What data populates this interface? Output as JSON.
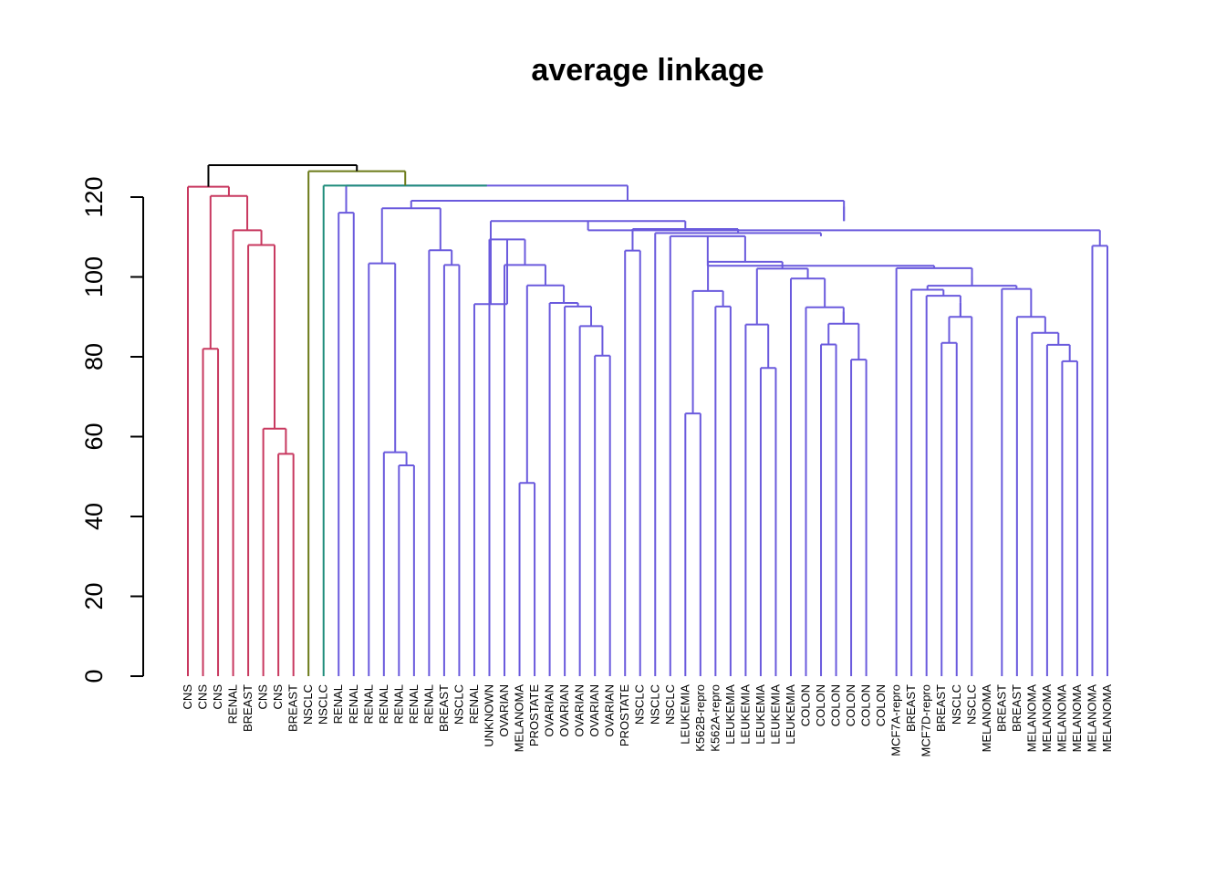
{
  "chart_data": {
    "type": "dendrogram",
    "title": "average linkage",
    "xlabel": "",
    "ylabel": "",
    "ylim": [
      0,
      130
    ],
    "yticks": [
      0,
      20,
      40,
      60,
      80,
      100,
      120
    ],
    "grid": false,
    "colors": {
      "cluster1": "#C8385F",
      "cluster2": "#6B7A18",
      "cluster3": "#1E8C7A",
      "cluster4": "#6A5ADD",
      "root": "#000000"
    },
    "leaves": [
      "CNS",
      "CNS",
      "CNS",
      "RENAL",
      "BREAST",
      "CNS",
      "CNS",
      "BREAST",
      "NSCLC",
      "NSCLC",
      "RENAL",
      "RENAL",
      "RENAL",
      "RENAL",
      "RENAL",
      "RENAL",
      "RENAL",
      "BREAST",
      "NSCLC",
      "RENAL",
      "UNKNOWN",
      "OVARIAN",
      "MELANOMA",
      "PROSTATE",
      "OVARIAN",
      "OVARIAN",
      "OVARIAN",
      "OVARIAN",
      "OVARIAN",
      "PROSTATE",
      "NSCLC",
      "NSCLC",
      "NSCLC",
      "LEUKEMIA",
      "K562B-repro",
      "K562A-repro",
      "LEUKEMIA",
      "LEUKEMIA",
      "LEUKEMIA",
      "LEUKEMIA",
      "LEUKEMIA",
      "COLON",
      "COLON",
      "COLON",
      "COLON",
      "COLON",
      "COLON",
      "MCF7A-repro",
      "BREAST",
      "MCF7D-repro",
      "BREAST",
      "NSCLC",
      "NSCLC",
      "MELANOMA",
      "BREAST",
      "BREAST",
      "MELANOMA",
      "MELANOMA",
      "MELANOMA",
      "MELANOMA",
      "MELANOMA",
      "MELANOMA"
    ],
    "merges": [
      {
        "a": 6,
        "b": 7,
        "height": 55.7,
        "color": "cluster1"
      },
      {
        "a": 5,
        "b": 6,
        "height": 62.0,
        "color": "cluster1"
      },
      {
        "a": 4,
        "b": 5,
        "height": 108.0,
        "color": "cluster1"
      },
      {
        "a": 3,
        "b": 4,
        "height": 111.7,
        "color": "cluster1"
      },
      {
        "a": 1,
        "b": 2,
        "height": 82.0,
        "color": "cluster1"
      },
      {
        "a": 1,
        "b": 3,
        "height": 120.3,
        "color": "cluster1"
      },
      {
        "a": 0,
        "b": 1,
        "height": 122.6,
        "color": "cluster1"
      },
      {
        "a": 14,
        "b": 15,
        "height": 52.8,
        "color": "cluster4"
      },
      {
        "a": 13,
        "b": 14,
        "height": 56.1,
        "color": "cluster4"
      },
      {
        "a": 12,
        "b": 13,
        "height": 103.4,
        "color": "cluster4"
      },
      {
        "a": 17,
        "b": 18,
        "height": 103.0,
        "color": "cluster4"
      },
      {
        "a": 16,
        "b": 17,
        "height": 106.7,
        "color": "cluster4"
      },
      {
        "a": 12,
        "b": 16,
        "height": 117.2,
        "color": "cluster4"
      },
      {
        "a": 27,
        "b": 28,
        "height": 80.3,
        "color": "cluster4"
      },
      {
        "a": 26,
        "b": 27,
        "height": 87.7,
        "color": "cluster4"
      },
      {
        "a": 25,
        "b": 26,
        "height": 92.6,
        "color": "cluster4"
      },
      {
        "a": 24,
        "b": 25,
        "height": 93.5,
        "color": "cluster4"
      },
      {
        "a": 22,
        "b": 23,
        "height": 48.4,
        "color": "cluster4"
      },
      {
        "a": 22,
        "b": 24,
        "height": 97.9,
        "color": "cluster4"
      },
      {
        "a": 21,
        "b": 22,
        "height": 103.0,
        "color": "cluster4"
      },
      {
        "a": 20,
        "b": 21,
        "height": 109.4,
        "color": "cluster4"
      },
      {
        "a": 19,
        "b": 20,
        "height": 93.2,
        "color": "cluster4"
      },
      {
        "a": 33,
        "b": 34,
        "height": 65.8,
        "color": "cluster4"
      },
      {
        "a": 35,
        "b": 36,
        "height": 92.6,
        "color": "cluster4"
      },
      {
        "a": 33,
        "b": 35,
        "height": 96.5,
        "color": "cluster4"
      },
      {
        "a": 38,
        "b": 39,
        "height": 77.2,
        "color": "cluster4"
      },
      {
        "a": 37,
        "b": 38,
        "height": 88.1,
        "color": "cluster4"
      },
      {
        "a": 42,
        "b": 43,
        "height": 83.1,
        "color": "cluster4"
      },
      {
        "a": 44,
        "b": 45,
        "height": 79.3,
        "color": "cluster4"
      },
      {
        "a": 43,
        "b": 44,
        "height": 88.3,
        "color": "cluster4"
      },
      {
        "a": 42,
        "b": 44,
        "height": 91.3,
        "color": "cluster4"
      },
      {
        "a": 41,
        "b": 42,
        "height": 92.4,
        "color": "cluster4"
      },
      {
        "a": 40,
        "b": 41,
        "height": 99.6,
        "color": "cluster4"
      },
      {
        "a": 37,
        "b": 40,
        "height": 102.1,
        "color": "cluster4"
      },
      {
        "a": 33,
        "b": 37,
        "height": 103.8,
        "color": "cluster4"
      },
      {
        "a": 32,
        "b": 33,
        "height": 110.2,
        "color": "cluster4"
      },
      {
        "a": 50,
        "b": 51,
        "height": 83.5,
        "color": "cluster4"
      },
      {
        "a": 51,
        "b": 52,
        "height": 90.0,
        "color": "cluster4"
      },
      {
        "a": 50,
        "b": 51,
        "height": 93.5,
        "color": "cluster4"
      },
      {
        "a": 49,
        "b": 50,
        "height": 95.3,
        "color": "cluster4"
      },
      {
        "a": 48,
        "b": 49,
        "height": 96.8,
        "color": "cluster4"
      },
      {
        "a": 58,
        "b": 59,
        "height": 78.9,
        "color": "cluster4"
      },
      {
        "a": 57,
        "b": 58,
        "height": 83.0,
        "color": "cluster4"
      },
      {
        "a": 56,
        "b": 57,
        "height": 86.0,
        "color": "cluster4"
      },
      {
        "a": 55,
        "b": 56,
        "height": 90.0,
        "color": "cluster4"
      },
      {
        "a": 54,
        "b": 55,
        "height": 97.0,
        "color": "cluster4"
      },
      {
        "a": 49,
        "b": 54,
        "height": 97.8,
        "color": "cluster4"
      },
      {
        "a": 48,
        "b": 49,
        "height": 100.0,
        "color": "cluster4"
      },
      {
        "a": 47,
        "b": 48,
        "height": 102.2,
        "color": "cluster4"
      },
      {
        "a": 39,
        "b": 47,
        "height": 102.8,
        "color": "cluster4"
      },
      {
        "a": 31,
        "b": 32,
        "height": 111.0,
        "color": "cluster4"
      },
      {
        "a": 29,
        "b": 30,
        "height": 106.6,
        "color": "cluster4"
      },
      {
        "a": 29,
        "b": 31,
        "height": 112.0,
        "color": "cluster4"
      },
      {
        "a": 20,
        "b": 29,
        "height": 114.0,
        "color": "cluster4"
      },
      {
        "a": 60,
        "b": 61,
        "height": 107.8,
        "color": "cluster4"
      },
      {
        "a": 59,
        "b": 60,
        "height": 111.7,
        "color": "cluster4"
      },
      {
        "a": 58,
        "b": 59,
        "height": 114.2,
        "color": "cluster4"
      },
      {
        "a": 20,
        "b": 58,
        "height": 117.6,
        "color": "cluster4"
      },
      {
        "a": 12,
        "b": 20,
        "height": 119.1,
        "color": "cluster4"
      },
      {
        "a": 10,
        "b": 11,
        "height": 116.1,
        "color": "cluster4"
      },
      {
        "a": 10,
        "b": 12,
        "height": 122.9,
        "color": "cluster4"
      },
      {
        "a": 9,
        "b": 10,
        "height": 122.9,
        "color": "cluster3"
      },
      {
        "a": 8,
        "b": 9,
        "height": 126.5,
        "color": "cluster2"
      },
      {
        "a": 0,
        "b": 8,
        "height": 128.0,
        "color": "root"
      }
    ]
  }
}
